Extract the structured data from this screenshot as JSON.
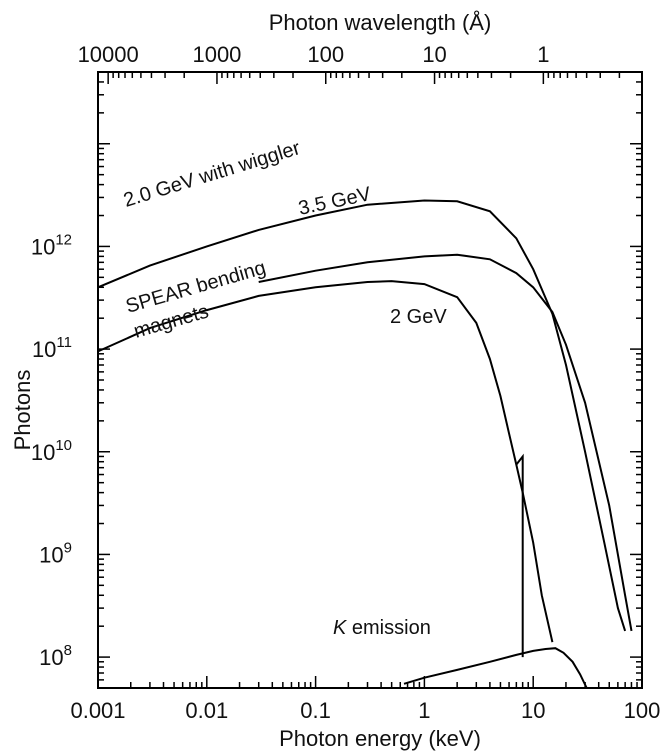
{
  "chart_data": {
    "type": "line",
    "xlabel": "Photon energy (keV)",
    "ylabel": "Photons",
    "top_xlabel": "Photon wavelength (Å)",
    "x_scale": "log",
    "y_scale": "log",
    "xlim": [
      0.001,
      100
    ],
    "ylim": [
      50000000,
      50000000000000
    ],
    "x_ticks": [
      {
        "value": 0.001,
        "label": "0.001"
      },
      {
        "value": 0.01,
        "label": "0.01"
      },
      {
        "value": 0.1,
        "label": "0.1"
      },
      {
        "value": 1,
        "label": "1"
      },
      {
        "value": 10,
        "label": "10"
      },
      {
        "value": 100,
        "label": "100"
      }
    ],
    "top_ticks": [
      {
        "value": 10000,
        "label": "10000"
      },
      {
        "value": 1000,
        "label": "1000"
      },
      {
        "value": 100,
        "label": "100"
      },
      {
        "value": 10,
        "label": "10"
      },
      {
        "value": 1,
        "label": "1"
      }
    ],
    "y_ticks": [
      {
        "value": 100000000,
        "base": "10",
        "exp": "8"
      },
      {
        "value": 1000000000,
        "base": "10",
        "exp": "9"
      },
      {
        "value": 10000000000,
        "base": "10",
        "exp": "10"
      },
      {
        "value": 100000000000,
        "base": "10",
        "exp": "11"
      },
      {
        "value": 1000000000000,
        "base": "10",
        "exp": "12"
      }
    ],
    "grid": false,
    "series": [
      {
        "name": "2.0 GeV with wiggler",
        "points": [
          [
            0.001,
            400000000000.0
          ],
          [
            0.003,
            650000000000.0
          ],
          [
            0.01,
            1000000000000.0
          ],
          [
            0.03,
            1450000000000.0
          ],
          [
            0.1,
            2000000000000.0
          ],
          [
            0.3,
            2550000000000.0
          ],
          [
            1,
            2800000000000.0
          ],
          [
            2,
            2750000000000.0
          ],
          [
            4,
            2200000000000.0
          ],
          [
            7,
            1200000000000.0
          ],
          [
            10,
            600000000000.0
          ],
          [
            15,
            220000000000.0
          ],
          [
            20,
            70000000000.0
          ],
          [
            30,
            10000000000.0
          ],
          [
            45,
            1300000000.0
          ],
          [
            60,
            300000000.0
          ],
          [
            70,
            180000000.0
          ]
        ]
      },
      {
        "name": "3.5 GeV",
        "points": [
          [
            0.03,
            450000000000.0
          ],
          [
            0.1,
            580000000000.0
          ],
          [
            0.3,
            700000000000.0
          ],
          [
            1,
            800000000000.0
          ],
          [
            2,
            830000000000.0
          ],
          [
            4,
            750000000000.0
          ],
          [
            7,
            550000000000.0
          ],
          [
            10,
            400000000000.0
          ],
          [
            15,
            230000000000.0
          ],
          [
            20,
            110000000000.0
          ],
          [
            30,
            30000000000.0
          ],
          [
            50,
            3000000000.0
          ],
          [
            70,
            400000000.0
          ],
          [
            80,
            180000000.0
          ]
        ]
      },
      {
        "name": "SPEAR bending magnets",
        "points": [
          [
            0.001,
            95000000000.0
          ],
          [
            0.003,
            160000000000.0
          ],
          [
            0.01,
            240000000000.0
          ],
          [
            0.03,
            330000000000.0
          ],
          [
            0.1,
            400000000000.0
          ],
          [
            0.3,
            450000000000.0
          ],
          [
            0.5,
            460000000000.0
          ],
          [
            1,
            430000000000.0
          ],
          [
            2,
            320000000000.0
          ],
          [
            3,
            180000000000.0
          ],
          [
            4,
            80000000000.0
          ],
          [
            5,
            35000000000.0
          ],
          [
            6,
            15000000000.0
          ],
          [
            7,
            7500000000.0
          ],
          [
            8,
            4000000000.0
          ],
          [
            10,
            1300000000.0
          ],
          [
            12,
            400000000.0
          ],
          [
            15,
            140000000.0
          ]
        ]
      },
      {
        "name": "2 GeV",
        "points": [
          [
            7,
            7500000000.0
          ],
          [
            8,
            9000000000.0
          ],
          [
            8,
            100000000.0
          ]
        ]
      },
      {
        "name": "K emission",
        "points": [
          [
            0.65,
            55000000.0
          ],
          [
            1,
            63000000.0
          ],
          [
            2,
            75000000.0
          ],
          [
            4,
            90000000.0
          ],
          [
            7,
            105000000.0
          ],
          [
            10,
            115000000.0
          ],
          [
            13,
            120000000.0
          ],
          [
            16,
            122000000.0
          ],
          [
            19,
            110000000.0
          ],
          [
            23,
            90000000.0
          ],
          [
            27,
            68000000.0
          ],
          [
            31,
            50000000.0
          ]
        ]
      }
    ],
    "annotations": [
      {
        "text": "2.0 GeV with wiggler",
        "target": "2.0 GeV with wiggler"
      },
      {
        "text": "3.5 GeV",
        "target": "3.5 GeV"
      },
      {
        "text": "SPEAR bending",
        "target": "SPEAR bending magnets"
      },
      {
        "text": "magnets",
        "target": "SPEAR bending magnets"
      },
      {
        "text": "2 GeV",
        "target": "2 GeV"
      },
      {
        "text": "K emission",
        "target": "K emission"
      }
    ]
  }
}
